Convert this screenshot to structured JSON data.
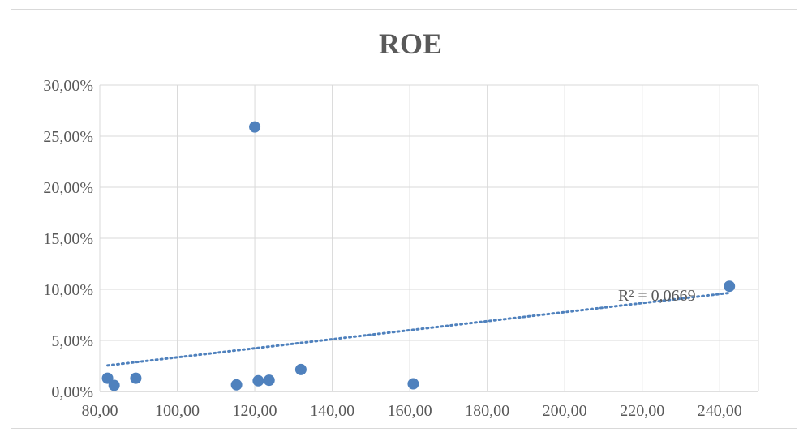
{
  "chart_data": {
    "type": "scatter",
    "title": "ROE",
    "xlabel": "",
    "ylabel": "",
    "xlim": [
      80,
      250
    ],
    "ylim": [
      0,
      0.3
    ],
    "x_ticks": [
      80,
      100,
      120,
      140,
      160,
      180,
      200,
      220,
      240
    ],
    "x_tick_labels": [
      "80,00",
      "100,00",
      "120,00",
      "140,00",
      "160,00",
      "180,00",
      "200,00",
      "220,00",
      "240,00"
    ],
    "y_ticks": [
      0,
      0.05,
      0.1,
      0.15,
      0.2,
      0.25,
      0.3
    ],
    "y_tick_labels": [
      "0,00%",
      "5,00%",
      "10,00%",
      "15,00%",
      "20,00%",
      "25,00%",
      "30,00%"
    ],
    "grid": true,
    "point_color": "#4f81bd",
    "trendline_color": "#4f81bd",
    "points": [
      {
        "x": 82.0,
        "y": 0.013
      },
      {
        "x": 83.7,
        "y": 0.006
      },
      {
        "x": 89.3,
        "y": 0.013
      },
      {
        "x": 115.3,
        "y": 0.0065
      },
      {
        "x": 120.0,
        "y": 0.259
      },
      {
        "x": 120.9,
        "y": 0.0105
      },
      {
        "x": 123.7,
        "y": 0.011
      },
      {
        "x": 131.9,
        "y": 0.0215
      },
      {
        "x": 160.9,
        "y": 0.0075
      },
      {
        "x": 242.5,
        "y": 0.103
      }
    ],
    "trendline": {
      "type": "linear",
      "x": [
        82.0,
        242.5
      ],
      "y": [
        0.0255,
        0.0965
      ]
    },
    "annotation": "R² = 0,0669"
  }
}
